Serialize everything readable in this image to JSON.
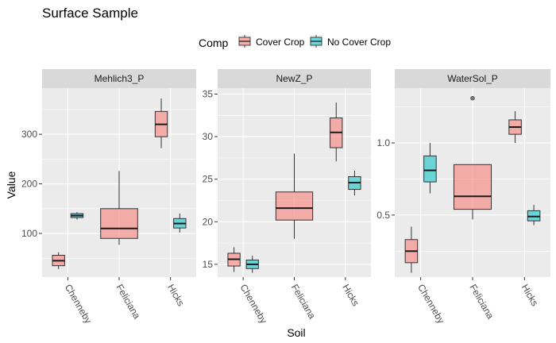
{
  "chart_data": {
    "type": "boxplot",
    "title": "Surface Sample",
    "xlabel": "Soil",
    "ylabel": "Value",
    "grid": true,
    "legend": {
      "title": "Comp",
      "position": "top",
      "entries": [
        {
          "name": "Cover Crop",
          "color": "#F8766D"
        },
        {
          "name": "No Cover Crop",
          "color": "#00BFC4"
        }
      ]
    },
    "categories": [
      "Chenneby",
      "Feliciana",
      "Hicks"
    ],
    "panels": [
      {
        "name": "Mehlich3_P",
        "ylim": [
          12,
          393
        ],
        "yticks": [
          100,
          200,
          300
        ],
        "boxes": [
          {
            "soil": "Chenneby",
            "group": "Cover Crop",
            "min": 28,
            "q1": 35,
            "median": 45,
            "q3": 56,
            "max": 62,
            "outliers": []
          },
          {
            "soil": "Chenneby",
            "group": "No Cover Crop",
            "min": 128,
            "q1": 132,
            "median": 136,
            "q3": 140,
            "max": 143,
            "outliers": []
          },
          {
            "soil": "Feliciana",
            "group": "Cover Crop",
            "min": 77,
            "q1": 90,
            "median": 110,
            "q3": 150,
            "max": 226,
            "outliers": []
          },
          {
            "soil": "Hicks",
            "group": "Cover Crop",
            "min": 272,
            "q1": 295,
            "median": 320,
            "q3": 346,
            "max": 372,
            "outliers": []
          },
          {
            "soil": "Hicks",
            "group": "No Cover Crop",
            "min": 102,
            "q1": 111,
            "median": 120,
            "q3": 130,
            "max": 140,
            "outliers": []
          }
        ]
      },
      {
        "name": "NewZ_P",
        "ylim": [
          13.5,
          35.7
        ],
        "yticks": [
          15,
          20,
          25,
          30,
          35
        ],
        "boxes": [
          {
            "soil": "Chenneby",
            "group": "Cover Crop",
            "min": 14.1,
            "q1": 14.8,
            "median": 15.6,
            "q3": 16.3,
            "max": 17.0,
            "outliers": []
          },
          {
            "soil": "Chenneby",
            "group": "No Cover Crop",
            "min": 14.0,
            "q1": 14.5,
            "median": 15.0,
            "q3": 15.5,
            "max": 16.0,
            "outliers": []
          },
          {
            "soil": "Feliciana",
            "group": "Cover Crop",
            "min": 18.0,
            "q1": 20.2,
            "median": 21.6,
            "q3": 23.5,
            "max": 28.0,
            "outliers": []
          },
          {
            "soil": "Hicks",
            "group": "Cover Crop",
            "min": 27.1,
            "q1": 28.7,
            "median": 30.5,
            "q3": 32.2,
            "max": 34.0,
            "outliers": []
          },
          {
            "soil": "Hicks",
            "group": "No Cover Crop",
            "min": 23.1,
            "q1": 23.8,
            "median": 24.6,
            "q3": 25.3,
            "max": 26.0,
            "outliers": []
          }
        ]
      },
      {
        "name": "WaterSol_P",
        "ylim": [
          0.07,
          1.38
        ],
        "yticks": [
          0.5,
          1.0
        ],
        "ytick_labels": [
          "0.5",
          "1.0"
        ],
        "boxes": [
          {
            "soil": "Chenneby",
            "group": "Cover Crop",
            "min": 0.1,
            "q1": 0.17,
            "median": 0.25,
            "q3": 0.33,
            "max": 0.42,
            "outliers": []
          },
          {
            "soil": "Chenneby",
            "group": "No Cover Crop",
            "min": 0.65,
            "q1": 0.73,
            "median": 0.81,
            "q3": 0.91,
            "max": 1.0,
            "outliers": []
          },
          {
            "soil": "Feliciana",
            "group": "Cover Crop",
            "min": 0.47,
            "q1": 0.54,
            "median": 0.63,
            "q3": 0.85,
            "max": 0.85,
            "outliers": [
              1.31
            ]
          },
          {
            "soil": "Hicks",
            "group": "Cover Crop",
            "min": 1.0,
            "q1": 1.06,
            "median": 1.11,
            "q3": 1.16,
            "max": 1.22,
            "outliers": []
          },
          {
            "soil": "Hicks",
            "group": "No Cover Crop",
            "min": 0.43,
            "q1": 0.46,
            "median": 0.49,
            "q3": 0.53,
            "max": 0.57,
            "outliers": []
          }
        ]
      }
    ]
  }
}
